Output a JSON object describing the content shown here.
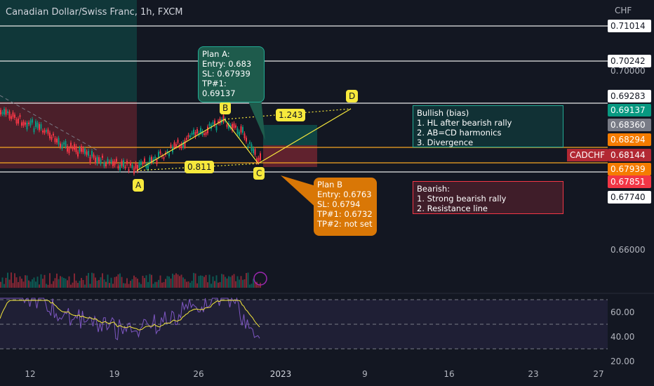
{
  "header": {
    "title": "Canadian Dollar/Swiss Franc, 1h, FXCM",
    "currency": "CHF"
  },
  "price_axis": {
    "symbol": "CADCHF",
    "labels": [
      "0.71014",
      "0.70242",
      "0.70000",
      "0.69283",
      "0.69137",
      "0.68360",
      "0.68294",
      "0.68144",
      "0.67939",
      "0.67851",
      "0.67740",
      "0.66000"
    ]
  },
  "time_axis": [
    "12",
    "19",
    "26",
    "2023",
    "9",
    "16",
    "23",
    "27"
  ],
  "rsi_axis": [
    "60.00",
    "40.00",
    "20.00"
  ],
  "pattern": {
    "points": [
      "A",
      "B",
      "C",
      "D"
    ],
    "ratios": [
      "0.811",
      "1.243"
    ]
  },
  "notes": {
    "plan_a": [
      "Plan A:",
      "Entry: 0.683",
      "SL: 0.67939",
      "TP#1: 0.69137"
    ],
    "plan_b": [
      "Plan B",
      "Entry: 0.6763",
      "SL: 0.6794",
      "TP#1: 0.6732",
      "TP#2: not set"
    ],
    "bullish": [
      "Bullish (bias)",
      "1. HL after bearish rally",
      "2. AB=CD harmonics",
      "3. Divergence"
    ],
    "bearish": [
      "Bearish:",
      "1. Strong bearish rally",
      "2. Resistance line"
    ]
  }
}
